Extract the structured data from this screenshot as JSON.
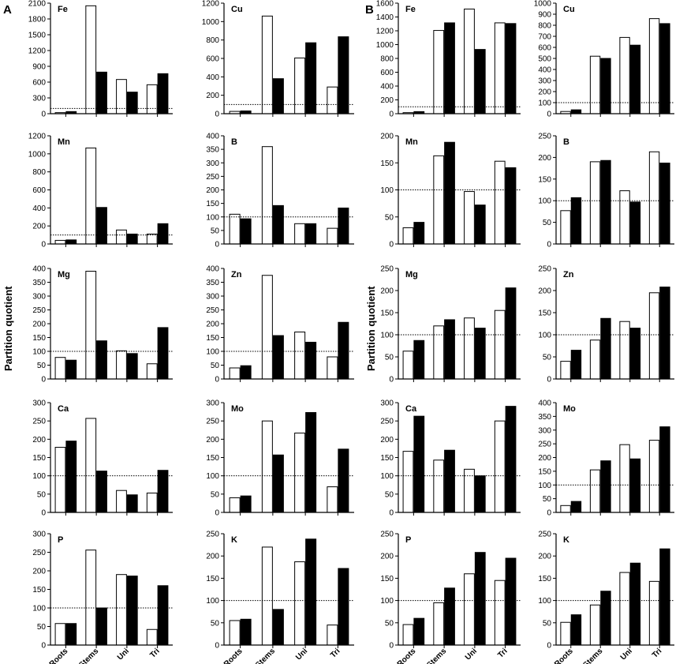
{
  "panel_labels": [
    "A",
    "B"
  ],
  "y_axis_label": "Partition quotient",
  "categories": [
    "Roots",
    "Stems",
    "Uni",
    "Tri"
  ],
  "colors": {
    "open_bar": "#ffffff",
    "filled_bar": "#000000",
    "outline": "#000000"
  },
  "reference_line": 100,
  "chart_data": [
    {
      "panel": "A",
      "element": "Fe",
      "type": "bar",
      "categories": [
        "Roots",
        "Stems",
        "Uni",
        "Tri"
      ],
      "ylim": [
        0,
        2100
      ],
      "yticks": [
        0,
        300,
        600,
        900,
        1200,
        1500,
        1800,
        2100
      ],
      "series": [
        {
          "values": [
            20,
            2050,
            650,
            550
          ]
        },
        {
          "values": [
            40,
            790,
            410,
            760
          ]
        }
      ]
    },
    {
      "panel": "A",
      "element": "Cu",
      "type": "bar",
      "categories": [
        "Roots",
        "Stems",
        "Uni",
        "Tri"
      ],
      "ylim": [
        0,
        1200
      ],
      "yticks": [
        0,
        200,
        400,
        600,
        800,
        1000,
        1200
      ],
      "series": [
        {
          "values": [
            25,
            1060,
            605,
            290
          ]
        },
        {
          "values": [
            30,
            380,
            770,
            835
          ]
        }
      ]
    },
    {
      "panel": "A",
      "element": "Mn",
      "type": "bar",
      "categories": [
        "Roots",
        "Stems",
        "Uni",
        "Tri"
      ],
      "ylim": [
        0,
        1200
      ],
      "yticks": [
        0,
        200,
        400,
        600,
        800,
        1000,
        1200
      ],
      "series": [
        {
          "values": [
            40,
            1065,
            155,
            110
          ]
        },
        {
          "values": [
            45,
            405,
            110,
            225
          ]
        }
      ]
    },
    {
      "panel": "A",
      "element": "B",
      "type": "bar",
      "categories": [
        "Roots",
        "Stems",
        "Uni",
        "Tri"
      ],
      "ylim": [
        0,
        400
      ],
      "yticks": [
        0,
        50,
        100,
        150,
        200,
        250,
        300,
        350,
        400
      ],
      "series": [
        {
          "values": [
            110,
            360,
            75,
            58
          ]
        },
        {
          "values": [
            93,
            142,
            75,
            133
          ]
        }
      ]
    },
    {
      "panel": "A",
      "element": "Mg",
      "type": "bar",
      "categories": [
        "Roots",
        "Stems",
        "Uni",
        "Tri"
      ],
      "ylim": [
        0,
        400
      ],
      "yticks": [
        0,
        50,
        100,
        150,
        200,
        250,
        300,
        350,
        400
      ],
      "series": [
        {
          "values": [
            78,
            390,
            102,
            55
          ]
        },
        {
          "values": [
            68,
            138,
            92,
            186
          ]
        }
      ]
    },
    {
      "panel": "A",
      "element": "Zn",
      "type": "bar",
      "categories": [
        "Roots",
        "Stems",
        "Uni",
        "Tri"
      ],
      "ylim": [
        0,
        400
      ],
      "yticks": [
        0,
        50,
        100,
        150,
        200,
        250,
        300,
        350,
        400
      ],
      "series": [
        {
          "values": [
            40,
            375,
            170,
            80
          ]
        },
        {
          "values": [
            48,
            157,
            133,
            205
          ]
        }
      ]
    },
    {
      "panel": "A",
      "element": "Ca",
      "type": "bar",
      "categories": [
        "Roots",
        "Stems",
        "Uni",
        "Tri"
      ],
      "ylim": [
        0,
        300
      ],
      "yticks": [
        0,
        50,
        100,
        150,
        200,
        250,
        300
      ],
      "series": [
        {
          "values": [
            178,
            257,
            60,
            53
          ]
        },
        {
          "values": [
            195,
            113,
            48,
            115
          ]
        }
      ]
    },
    {
      "panel": "A",
      "element": "Mo",
      "type": "bar",
      "categories": [
        "Roots",
        "Stems",
        "Uni",
        "Tri"
      ],
      "ylim": [
        0,
        300
      ],
      "yticks": [
        0,
        50,
        100,
        150,
        200,
        250,
        300
      ],
      "series": [
        {
          "values": [
            40,
            250,
            217,
            70
          ]
        },
        {
          "values": [
            45,
            157,
            273,
            173
          ]
        }
      ]
    },
    {
      "panel": "A",
      "element": "P",
      "type": "bar",
      "categories": [
        "Roots",
        "Stems",
        "Uni",
        "Tri"
      ],
      "ylim": [
        0,
        300
      ],
      "yticks": [
        0,
        50,
        100,
        150,
        200,
        250,
        300
      ],
      "series": [
        {
          "values": [
            58,
            256,
            190,
            42
          ]
        },
        {
          "values": [
            58,
            100,
            186,
            160
          ]
        }
      ]
    },
    {
      "panel": "A",
      "element": "K",
      "type": "bar",
      "categories": [
        "Roots",
        "Stems",
        "Uni",
        "Tri"
      ],
      "ylim": [
        0,
        250
      ],
      "yticks": [
        0,
        50,
        100,
        150,
        200,
        250
      ],
      "series": [
        {
          "values": [
            55,
            220,
            187,
            45
          ]
        },
        {
          "values": [
            58,
            80,
            238,
            172
          ]
        }
      ]
    },
    {
      "panel": "B",
      "element": "Fe",
      "type": "bar",
      "categories": [
        "Roots",
        "Stems",
        "Uni",
        "Tri"
      ],
      "ylim": [
        0,
        1600
      ],
      "yticks": [
        0,
        200,
        400,
        600,
        800,
        1000,
        1200,
        1400,
        1600
      ],
      "series": [
        {
          "values": [
            15,
            1205,
            1515,
            1315
          ]
        },
        {
          "values": [
            30,
            1315,
            930,
            1305
          ]
        }
      ]
    },
    {
      "panel": "B",
      "element": "Cu",
      "type": "bar",
      "categories": [
        "Roots",
        "Stems",
        "Uni",
        "Tri"
      ],
      "ylim": [
        0,
        1000
      ],
      "yticks": [
        0,
        100,
        200,
        300,
        400,
        500,
        600,
        700,
        800,
        900,
        1000
      ],
      "series": [
        {
          "values": [
            20,
            520,
            690,
            860
          ]
        },
        {
          "values": [
            35,
            500,
            620,
            815
          ]
        }
      ]
    },
    {
      "panel": "B",
      "element": "Mn",
      "type": "bar",
      "categories": [
        "Roots",
        "Stems",
        "Uni",
        "Tri"
      ],
      "ylim": [
        0,
        200
      ],
      "yticks": [
        0,
        50,
        100,
        150,
        200
      ],
      "series": [
        {
          "values": [
            30,
            163,
            97,
            153
          ]
        },
        {
          "values": [
            40,
            188,
            72,
            141
          ]
        }
      ]
    },
    {
      "panel": "B",
      "element": "B",
      "type": "bar",
      "categories": [
        "Roots",
        "Stems",
        "Uni",
        "Tri"
      ],
      "ylim": [
        0,
        250
      ],
      "yticks": [
        0,
        50,
        100,
        150,
        200,
        250
      ],
      "series": [
        {
          "values": [
            77,
            190,
            123,
            213
          ]
        },
        {
          "values": [
            107,
            193,
            97,
            187
          ]
        }
      ]
    },
    {
      "panel": "B",
      "element": "Mg",
      "type": "bar",
      "categories": [
        "Roots",
        "Stems",
        "Uni",
        "Tri"
      ],
      "ylim": [
        0,
        250
      ],
      "yticks": [
        0,
        50,
        100,
        150,
        200,
        250
      ],
      "series": [
        {
          "values": [
            63,
            120,
            138,
            155
          ]
        },
        {
          "values": [
            87,
            134,
            115,
            206
          ]
        }
      ]
    },
    {
      "panel": "B",
      "element": "Zn",
      "type": "bar",
      "categories": [
        "Roots",
        "Stems",
        "Uni",
        "Tri"
      ],
      "ylim": [
        0,
        250
      ],
      "yticks": [
        0,
        50,
        100,
        150,
        200,
        250
      ],
      "series": [
        {
          "values": [
            40,
            88,
            130,
            195
          ]
        },
        {
          "values": [
            65,
            137,
            115,
            208
          ]
        }
      ]
    },
    {
      "panel": "B",
      "element": "Ca",
      "type": "bar",
      "categories": [
        "Roots",
        "Stems",
        "Uni",
        "Tri"
      ],
      "ylim": [
        0,
        300
      ],
      "yticks": [
        0,
        50,
        100,
        150,
        200,
        250,
        300
      ],
      "series": [
        {
          "values": [
            167,
            143,
            118,
            250
          ]
        },
        {
          "values": [
            263,
            170,
            100,
            290
          ]
        }
      ]
    },
    {
      "panel": "B",
      "element": "Mo",
      "type": "bar",
      "categories": [
        "Roots",
        "Stems",
        "Uni",
        "Tri"
      ],
      "ylim": [
        0,
        400
      ],
      "yticks": [
        0,
        50,
        100,
        150,
        200,
        250,
        300,
        350,
        400
      ],
      "series": [
        {
          "values": [
            25,
            155,
            247,
            263
          ]
        },
        {
          "values": [
            40,
            188,
            195,
            312
          ]
        }
      ]
    },
    {
      "panel": "B",
      "element": "P",
      "type": "bar",
      "categories": [
        "Roots",
        "Stems",
        "Uni",
        "Tri"
      ],
      "ylim": [
        0,
        250
      ],
      "yticks": [
        0,
        50,
        100,
        150,
        200,
        250
      ],
      "series": [
        {
          "values": [
            46,
            95,
            160,
            145
          ]
        },
        {
          "values": [
            60,
            128,
            208,
            195
          ]
        }
      ]
    },
    {
      "panel": "B",
      "element": "K",
      "type": "bar",
      "categories": [
        "Roots",
        "Stems",
        "Uni",
        "Tri"
      ],
      "ylim": [
        0,
        250
      ],
      "yticks": [
        0,
        50,
        100,
        150,
        200,
        250
      ],
      "series": [
        {
          "values": [
            51,
            90,
            163,
            143
          ]
        },
        {
          "values": [
            68,
            121,
            184,
            216
          ]
        }
      ]
    }
  ]
}
